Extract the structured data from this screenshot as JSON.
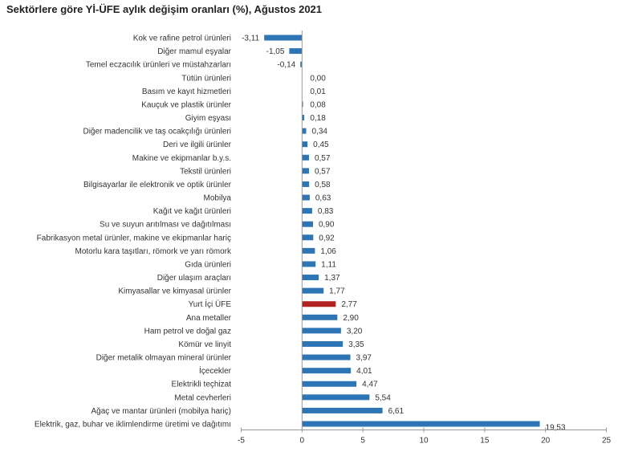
{
  "chart_data": {
    "type": "bar",
    "orientation": "horizontal",
    "title": "Sektörlere göre Yİ-ÜFE aylık değişim oranları (%), Ağustos 2021",
    "xlabel": "",
    "ylabel": "",
    "xlim": [
      -5,
      25
    ],
    "xticks": [
      -5,
      0,
      5,
      10,
      15,
      20,
      25
    ],
    "grid": false,
    "colors": {
      "default": "#2e75b6",
      "highlight": "#b22222"
    },
    "categories": [
      "Kok ve rafine petrol ürünleri",
      "Diğer mamul eşyalar",
      "Temel eczacılık ürünleri ve müstahzarları",
      "Tütün ürünleri",
      "Basım ve kayıt hizmetleri",
      "Kauçuk ve plastik ürünler",
      "Giyim eşyası",
      "Diğer madencilik ve taş ocakçılığı ürünleri",
      "Deri ve ilgili ürünler",
      "Makine ve ekipmanlar b.y.s.",
      "Tekstil ürünleri",
      "Bilgisayarlar ile elektronik ve optik ürünler",
      "Mobilya",
      "Kağıt ve kağıt ürünleri",
      "Su ve suyun arıtılması ve dağıtılması",
      "Fabrikasyon metal ürünler, makine ve ekipmanlar hariç",
      "Motorlu kara taşıtları, römork ve yarı römork",
      "Gıda ürünleri",
      "Diğer ulaşım araçları",
      "Kimyasallar ve kimyasal ürünler",
      "Yurt İçi ÜFE",
      "Ana metaller",
      "Ham petrol ve doğal gaz",
      "Kömür ve linyit",
      "Diğer metalik olmayan mineral ürünler",
      "İçecekler",
      "Elektrikli teçhizat",
      "Metal cevherleri",
      "Ağaç ve mantar ürünleri (mobilya hariç)",
      "Elektrik, gaz, buhar ve iklimlendirme üretimi ve dağıtımı"
    ],
    "values": [
      -3.11,
      -1.05,
      -0.14,
      0.0,
      0.01,
      0.08,
      0.18,
      0.34,
      0.45,
      0.57,
      0.57,
      0.58,
      0.63,
      0.83,
      0.9,
      0.92,
      1.06,
      1.11,
      1.37,
      1.77,
      2.77,
      2.9,
      3.2,
      3.35,
      3.97,
      4.01,
      4.47,
      5.54,
      6.61,
      19.53
    ],
    "value_labels": [
      "-3,11",
      "-1,05",
      "-0,14",
      "0,00",
      "0,01",
      "0,08",
      "0,18",
      "0,34",
      "0,45",
      "0,57",
      "0,57",
      "0,58",
      "0,63",
      "0,83",
      "0,90",
      "0,92",
      "1,06",
      "1,11",
      "1,37",
      "1,77",
      "2,77",
      "2,90",
      "3,20",
      "3,35",
      "3,97",
      "4,01",
      "4,47",
      "5,54",
      "6,61",
      "19,53"
    ],
    "highlight_index": 20
  }
}
